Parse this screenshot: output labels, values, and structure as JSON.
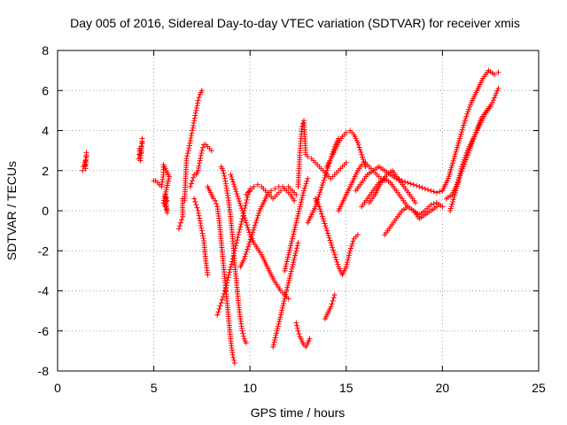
{
  "chart_data": {
    "type": "scatter",
    "title": "Day 005 of 2016, Sidereal Day-to-day VTEC variation (SDTVAR) for receiver xmis",
    "xlabel": "GPS time / hours",
    "ylabel": "SDTVAR / TECUs",
    "xlim": [
      0,
      25
    ],
    "ylim": [
      -8,
      8
    ],
    "x_ticks": [
      "0",
      "5",
      "10",
      "15",
      "20",
      "25"
    ],
    "y_ticks": [
      "-8",
      "-6",
      "-4",
      "-2",
      "0",
      "2",
      "4",
      "6",
      "8"
    ],
    "grid": true,
    "marker": "+",
    "color": "#ff0000",
    "series": [
      {
        "x": [
          1.3,
          1.35,
          1.4,
          1.45,
          1.5,
          1.5,
          1.45,
          1.4
        ],
        "y": [
          2.0,
          2.2,
          2.3,
          2.5,
          2.7,
          2.9,
          2.1,
          2.4
        ]
      },
      {
        "x": [
          4.2,
          4.25,
          4.3,
          4.35,
          4.4,
          4.4,
          4.3,
          4.25,
          4.35
        ],
        "y": [
          2.6,
          2.8,
          3.0,
          3.2,
          3.4,
          3.6,
          2.5,
          3.1,
          2.9
        ]
      },
      {
        "x": [
          5.0,
          5.1,
          5.2,
          5.3,
          5.4,
          5.5,
          5.5,
          5.6,
          5.7,
          5.8,
          5.5,
          5.6,
          5.7,
          5.6,
          5.7
        ],
        "y": [
          1.5,
          1.5,
          1.4,
          1.3,
          1.2,
          1.8,
          2.3,
          2.1,
          1.9,
          1.7,
          0.4,
          0.2,
          -0.1,
          0.8,
          0.5
        ]
      },
      {
        "x": [
          6.3,
          6.4,
          6.5,
          6.5,
          6.6,
          6.7,
          6.8,
          6.9,
          7.0,
          7.1,
          7.2,
          7.3,
          7.4,
          7.5
        ],
        "y": [
          -0.9,
          -0.6,
          -0.3,
          0.6,
          0.5,
          2.6,
          3.0,
          3.5,
          4.0,
          4.5,
          5.0,
          5.5,
          5.8,
          6.0
        ]
      },
      {
        "x": [
          6.9,
          7.0,
          7.1,
          7.2,
          7.3,
          7.4,
          7.5,
          7.6,
          7.7,
          7.8,
          7.9,
          8.0
        ],
        "y": [
          1.2,
          1.5,
          1.8,
          1.8,
          2.0,
          2.5,
          3.0,
          3.3,
          3.3,
          3.2,
          3.1,
          3.0
        ]
      },
      {
        "x": [
          7.1,
          7.2,
          7.3,
          7.4,
          7.5,
          7.6,
          7.7,
          7.8
        ],
        "y": [
          0.6,
          0.3,
          0.0,
          -0.5,
          -1.0,
          -1.5,
          -2.5,
          -3.2
        ]
      },
      {
        "x": [
          7.8,
          7.9,
          8.0,
          8.1,
          8.2,
          8.3,
          8.4,
          8.5,
          8.6,
          8.7,
          8.8,
          8.9,
          9.0,
          9.1,
          9.2
        ],
        "y": [
          1.2,
          1.0,
          0.8,
          0.6,
          0.5,
          0.2,
          -0.5,
          -1.5,
          -2.5,
          -3.5,
          -4.5,
          -5.5,
          -6.5,
          -7.2,
          -7.6
        ]
      },
      {
        "x": [
          8.3,
          8.4,
          8.5,
          8.6,
          8.7,
          8.8,
          8.9,
          9.0,
          9.1,
          9.2,
          9.3,
          9.4,
          9.5,
          9.6,
          9.7,
          9.8,
          9.9,
          10.0
        ],
        "y": [
          -5.2,
          -4.9,
          -4.6,
          -4.3,
          -4.0,
          -3.6,
          -3.2,
          -2.8,
          -2.4,
          -2.0,
          -1.6,
          -1.2,
          -0.8,
          -0.4,
          0.0,
          0.4,
          0.8,
          1.1
        ]
      },
      {
        "x": [
          8.5,
          8.6,
          8.7,
          8.8,
          8.9,
          9.0,
          9.1,
          9.2,
          9.3,
          9.4,
          9.5,
          9.6,
          9.7,
          9.8
        ],
        "y": [
          2.2,
          2.0,
          1.6,
          1.0,
          0.4,
          -0.4,
          -1.4,
          -2.6,
          -3.6,
          -4.6,
          -5.4,
          -6.0,
          -6.4,
          -6.6
        ]
      },
      {
        "x": [
          9.0,
          9.2,
          9.4,
          9.6,
          9.8,
          10.0,
          10.2,
          10.4,
          10.6,
          10.8,
          11.0,
          11.2,
          11.4,
          11.6,
          11.8,
          12.0
        ],
        "y": [
          1.8,
          1.2,
          0.6,
          0.0,
          -0.6,
          -1.2,
          -1.6,
          -1.9,
          -2.2,
          -2.6,
          -3.0,
          -3.4,
          -3.7,
          -4.0,
          -4.2,
          -4.4
        ]
      },
      {
        "x": [
          9.5,
          9.7,
          9.9,
          10.1,
          10.3,
          10.5,
          10.7,
          10.9,
          11.1,
          11.3,
          11.5,
          11.7,
          11.9,
          12.1,
          12.3
        ],
        "y": [
          -2.8,
          -2.4,
          -1.8,
          -1.2,
          -0.6,
          0.0,
          0.4,
          0.8,
          1.0,
          1.1,
          1.2,
          1.2,
          1.0,
          0.8,
          0.5
        ]
      },
      {
        "x": [
          9.8,
          10.0,
          10.2,
          10.4,
          10.6,
          10.8,
          11.0,
          11.2,
          11.4,
          11.6,
          11.8,
          12.0,
          12.2,
          12.4
        ],
        "y": [
          0.8,
          1.0,
          1.2,
          1.3,
          1.2,
          1.0,
          0.8,
          0.6,
          0.8,
          1.0,
          1.1,
          1.2,
          1.0,
          0.8
        ]
      },
      {
        "x": [
          11.2,
          11.4,
          11.6,
          11.8,
          12.0,
          12.2,
          12.4,
          12.5
        ],
        "y": [
          -6.8,
          -6.0,
          -5.2,
          -4.4,
          -3.6,
          -2.8,
          -2.0,
          -1.6
        ]
      },
      {
        "x": [
          11.8,
          12.0,
          12.2,
          12.4,
          12.6,
          12.8,
          13.0
        ],
        "y": [
          -3.0,
          -2.2,
          -1.4,
          -0.6,
          0.2,
          1.0,
          1.6
        ]
      },
      {
        "x": [
          12.4,
          12.5,
          12.6,
          12.7,
          12.8,
          12.9,
          13.0,
          13.1
        ],
        "y": [
          -5.6,
          -6.0,
          -6.3,
          -6.5,
          -6.7,
          -6.8,
          -6.6,
          -6.4
        ]
      },
      {
        "x": [
          12.5,
          12.6,
          12.7,
          12.8,
          12.9,
          13.0,
          13.2,
          13.4,
          13.6,
          13.8,
          14.0,
          14.2,
          14.4,
          14.6,
          14.8,
          15.0
        ],
        "y": [
          1.2,
          3.0,
          4.2,
          4.5,
          2.8,
          2.7,
          2.6,
          2.4,
          2.2,
          2.0,
          1.8,
          1.6,
          1.8,
          2.0,
          2.2,
          2.4
        ]
      },
      {
        "x": [
          13.0,
          13.2,
          13.4,
          13.6,
          13.8,
          14.0,
          14.2,
          14.4,
          14.6
        ],
        "y": [
          -0.6,
          -0.2,
          0.2,
          0.8,
          1.4,
          2.0,
          2.6,
          3.2,
          3.6
        ]
      },
      {
        "x": [
          13.4,
          13.6,
          13.8,
          14.0,
          14.2,
          14.4,
          14.6,
          14.8,
          15.0,
          15.2,
          15.4,
          15.6
        ],
        "y": [
          0.6,
          0.2,
          -0.4,
          -1.0,
          -1.6,
          -2.2,
          -2.8,
          -3.2,
          -2.8,
          -2.0,
          -1.4,
          -1.2
        ]
      },
      {
        "x": [
          13.9,
          14.0,
          14.1,
          14.2,
          14.3,
          14.4
        ],
        "y": [
          -5.4,
          -5.2,
          -5.0,
          -4.8,
          -4.5,
          -4.2
        ]
      },
      {
        "x": [
          14.0,
          14.2,
          14.4,
          14.6,
          14.8,
          15.0,
          15.2,
          15.4,
          15.6,
          15.8,
          16.0
        ],
        "y": [
          2.2,
          2.6,
          3.0,
          3.4,
          3.7,
          3.9,
          4.0,
          3.8,
          3.4,
          2.8,
          2.2
        ]
      },
      {
        "x": [
          14.6,
          14.8,
          15.0,
          15.2,
          15.4,
          15.6,
          15.8,
          16.0,
          16.2,
          16.4,
          16.6,
          16.8,
          17.0
        ],
        "y": [
          0.0,
          0.4,
          0.8,
          1.2,
          1.6,
          2.0,
          2.3,
          2.4,
          2.2,
          2.0,
          1.8,
          1.6,
          1.5
        ]
      },
      {
        "x": [
          15.5,
          15.8,
          16.1,
          16.4,
          16.7,
          17.0,
          17.3,
          17.6,
          17.9,
          18.2,
          18.5,
          18.8,
          19.1,
          19.4,
          19.7,
          20.0
        ],
        "y": [
          1.0,
          1.4,
          1.8,
          2.0,
          2.2,
          2.0,
          1.8,
          1.6,
          1.5,
          1.4,
          1.3,
          1.2,
          1.1,
          1.0,
          0.9,
          1.0
        ]
      },
      {
        "x": [
          15.8,
          16.1,
          16.4,
          16.7,
          17.0,
          17.3,
          17.6,
          17.9,
          18.2,
          18.5,
          18.8,
          19.1,
          19.4,
          19.7,
          20.0
        ],
        "y": [
          0.2,
          0.6,
          1.0,
          1.4,
          1.6,
          1.4,
          1.0,
          0.6,
          0.2,
          0.0,
          -0.2,
          0.0,
          0.3,
          0.4,
          0.2
        ]
      },
      {
        "x": [
          16.2,
          16.5,
          16.8,
          17.1,
          17.4,
          17.7,
          18.0,
          18.3,
          18.6
        ],
        "y": [
          0.4,
          0.8,
          1.4,
          1.8,
          2.0,
          1.6,
          1.2,
          0.8,
          0.4
        ]
      },
      {
        "x": [
          17.0,
          17.3,
          17.6,
          17.9,
          18.2,
          18.5,
          18.8,
          19.1,
          19.4,
          19.7
        ],
        "y": [
          -1.2,
          -0.8,
          -0.4,
          0.0,
          0.2,
          0.0,
          -0.4,
          -0.2,
          0.0,
          0.2
        ]
      },
      {
        "x": [
          20.0,
          20.3,
          20.6,
          20.9,
          21.2,
          21.5,
          21.8,
          22.1,
          22.4,
          22.7,
          22.9
        ],
        "y": [
          1.0,
          1.6,
          2.6,
          3.6,
          4.6,
          5.4,
          6.0,
          6.6,
          7.0,
          6.8,
          6.9
        ]
      },
      {
        "x": [
          20.2,
          20.5,
          20.8,
          21.1,
          21.4,
          21.7,
          22.0,
          22.3,
          22.6,
          22.9
        ],
        "y": [
          0.6,
          0.8,
          1.4,
          2.2,
          3.0,
          3.8,
          4.6,
          5.0,
          5.4,
          6.1
        ]
      },
      {
        "x": [
          20.4,
          20.7,
          21.0,
          21.3,
          21.6,
          21.9,
          22.2,
          22.5
        ],
        "y": [
          0.0,
          1.0,
          2.2,
          3.0,
          3.6,
          4.2,
          4.8,
          5.2
        ]
      }
    ]
  }
}
